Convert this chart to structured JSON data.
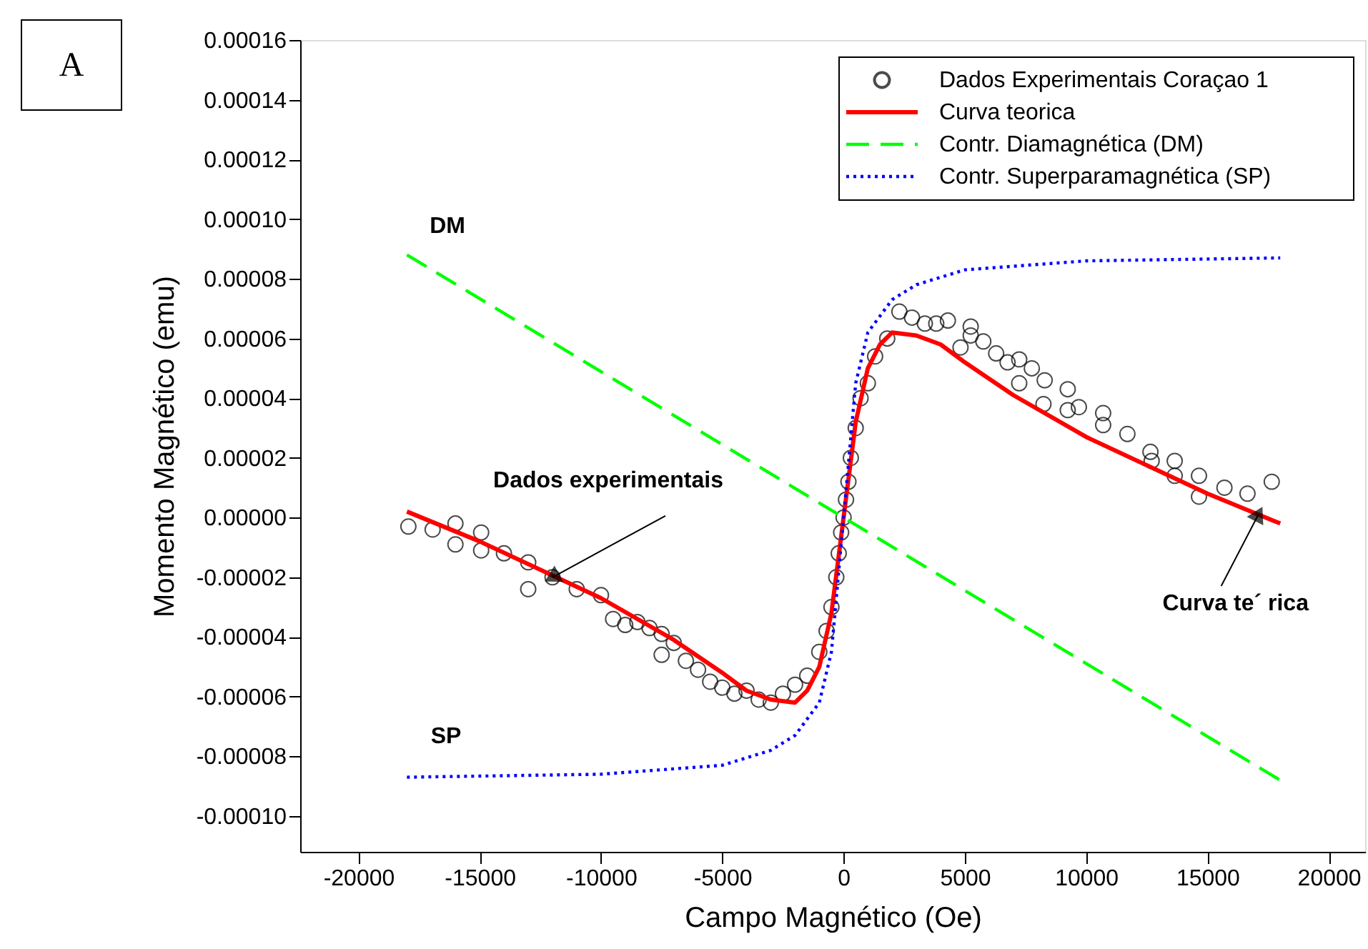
{
  "chart_data": {
    "type": "scatter",
    "xlabel": "Campo Magnético (Oe)",
    "ylabel": "Momento Magnético (emu)",
    "xlim": [
      -22400,
      21500
    ],
    "ylim": [
      -0.000112,
      0.00016
    ],
    "xticks": [
      -20000,
      -15000,
      -10000,
      -5000,
      0,
      5000,
      10000,
      15000,
      20000
    ],
    "yticks": [
      {
        "value": 0.00016,
        "label": "0.00016"
      },
      {
        "value": 0.00014,
        "label": "0.00014"
      },
      {
        "value": 0.00012,
        "label": "0.00012"
      },
      {
        "value": 0.0001,
        "label": "0.00010"
      },
      {
        "value": 8e-05,
        "label": "0.00008"
      },
      {
        "value": 6e-05,
        "label": "0.00006"
      },
      {
        "value": 4e-05,
        "label": "0.00004"
      },
      {
        "value": 2e-05,
        "label": "0.00002"
      },
      {
        "value": 0,
        "label": "0.00000"
      },
      {
        "value": -2e-05,
        "label": "-0.00002"
      },
      {
        "value": -4e-05,
        "label": "-0.00004"
      },
      {
        "value": -6e-05,
        "label": "-0.00006"
      },
      {
        "value": -8e-05,
        "label": "-0.00008"
      },
      {
        "value": -0.0001,
        "label": "-0.00010"
      }
    ],
    "grid": false,
    "legend": "top right",
    "series": [
      {
        "name": "Dados Experimentais Coraçao 1",
        "marker": "circle",
        "color": "#000000",
        "x": [
          -17940,
          -16940,
          -16000,
          -16000,
          -14940,
          -14940,
          -14000,
          -13000,
          -13000,
          -12000,
          -11000,
          -10000,
          -9500,
          -9000,
          -8500,
          -8000,
          -7500,
          -7500,
          -7000,
          -6500,
          -6000,
          -5500,
          -5000,
          -4500,
          -4000,
          -3500,
          -3000,
          -2500,
          -2000,
          -1500,
          -1000,
          -700,
          -500,
          -300,
          -200,
          -100,
          0,
          100,
          200,
          300,
          500,
          700,
          1000,
          1300,
          1800,
          2300,
          2820,
          3350,
          3820,
          4300,
          4820,
          5240,
          5240,
          5760,
          6290,
          6760,
          7240,
          7240,
          7760,
          8290,
          8240,
          9240,
          9240,
          9700,
          10700,
          10700,
          11700,
          12650,
          12700,
          13650,
          13650,
          14650,
          14650,
          15700,
          16650,
          17650
        ],
        "values": [
          -3e-06,
          -4e-06,
          -2e-06,
          -9e-06,
          -5e-06,
          -1.1e-05,
          -1.2e-05,
          -1.5e-05,
          -2.4e-05,
          -2e-05,
          -2.4e-05,
          -2.6e-05,
          -3.4e-05,
          -3.6e-05,
          -3.5e-05,
          -3.7e-05,
          -3.9e-05,
          -4.6e-05,
          -4.2e-05,
          -4.8e-05,
          -5.1e-05,
          -5.5e-05,
          -5.7e-05,
          -5.9e-05,
          -5.8e-05,
          -6.1e-05,
          -6.2e-05,
          -5.9e-05,
          -5.6e-05,
          -5.3e-05,
          -4.5e-05,
          -3.8e-05,
          -3e-05,
          -2e-05,
          -1.2e-05,
          -5e-06,
          0,
          6e-06,
          1.2e-05,
          2e-05,
          3e-05,
          4e-05,
          4.5e-05,
          5.4e-05,
          6e-05,
          6.9e-05,
          6.7e-05,
          6.5e-05,
          6.5e-05,
          6.6e-05,
          5.7e-05,
          6.4e-05,
          6.1e-05,
          5.9e-05,
          5.5e-05,
          5.2e-05,
          5.3e-05,
          4.5e-05,
          5e-05,
          4.6e-05,
          3.8e-05,
          4.3e-05,
          3.6e-05,
          3.7e-05,
          3.5e-05,
          3.1e-05,
          2.8e-05,
          2.2e-05,
          1.9e-05,
          1.9e-05,
          1.4e-05,
          1.4e-05,
          7e-06,
          1e-05,
          8e-06,
          1.2e-05
        ]
      },
      {
        "name": "Curva teorica",
        "type": "line",
        "line_style": "solid",
        "color": "#ff0000",
        "x": [
          -18000,
          -15000,
          -10000,
          -7000,
          -5000,
          -4000,
          -3000,
          -2000,
          -1500,
          -1000,
          -500,
          0,
          500,
          1000,
          1500,
          2000,
          3000,
          4000,
          5000,
          7000,
          10000,
          15000,
          18000
        ],
        "values": [
          2e-06,
          -8e-06,
          -2.7e-05,
          -4.1e-05,
          -5.2e-05,
          -5.8e-05,
          -6.1e-05,
          -6.2e-05,
          -5.8e-05,
          -5e-05,
          -3.2e-05,
          0,
          3.2e-05,
          5e-05,
          5.8e-05,
          6.2e-05,
          6.1e-05,
          5.8e-05,
          5.2e-05,
          4.1e-05,
          2.7e-05,
          8e-06,
          -2e-06
        ]
      },
      {
        "name": "Contr. Diamagnética (DM)",
        "type": "line",
        "line_style": "dashed",
        "color": "#00ff00",
        "x": [
          -18000,
          18000
        ],
        "values": [
          8.8e-05,
          -8.8e-05
        ]
      },
      {
        "name": "Contr. Superparamagnética (SP)",
        "type": "line",
        "line_style": "dotted",
        "color": "#0000ff",
        "x": [
          -18000,
          -10000,
          -5000,
          -3000,
          -2000,
          -1000,
          -500,
          0,
          500,
          1000,
          2000,
          3000,
          5000,
          10000,
          18000
        ],
        "values": [
          -8.7e-05,
          -8.6e-05,
          -8.3e-05,
          -7.8e-05,
          -7.3e-05,
          -6.2e-05,
          -4.5e-05,
          0,
          4.5e-05,
          6.2e-05,
          7.3e-05,
          7.8e-05,
          8.3e-05,
          8.6e-05,
          8.7e-05
        ]
      }
    ],
    "annotations": [
      "A",
      "DM",
      "SP",
      {
        "text": "Dados experimentais",
        "x": -12000,
        "y": -2e-05
      },
      {
        "text": "Curva te´ rica",
        "x": 17100,
        "y": 1e-06
      }
    ]
  }
}
